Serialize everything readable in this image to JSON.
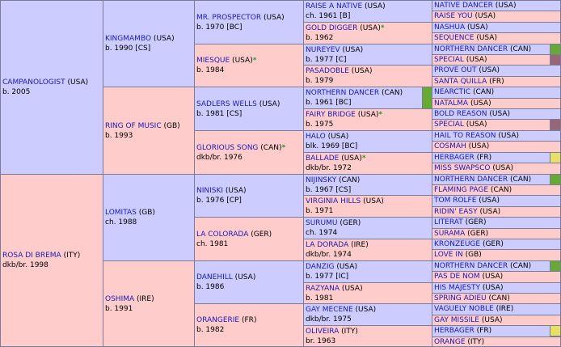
{
  "gen1": [
    {
      "name": "CAMPANOLOGIST",
      "country": "USA",
      "info": "b. 2005",
      "sex": "m"
    },
    {
      "name": "ROSA DI BREMA",
      "country": "ITY",
      "info": "dkb/br. 1998",
      "sex": "f"
    }
  ],
  "gen2": [
    {
      "name": "KINGMAMBO",
      "country": "USA",
      "info": "b. 1990 [CS]",
      "sex": "m"
    },
    {
      "name": "RING OF MUSIC",
      "country": "GB",
      "info": "b. 1993",
      "sex": "f"
    },
    {
      "name": "LOMITAS",
      "country": "GB",
      "info": "ch. 1988",
      "sex": "m"
    },
    {
      "name": "OSHIMA",
      "country": "IRE",
      "info": "b. 1991",
      "sex": "f"
    }
  ],
  "gen3": [
    {
      "name": "MR. PROSPECTOR",
      "country": "USA",
      "info": "b. 1970 [BC]",
      "sex": "m"
    },
    {
      "name": "MIESQUE",
      "country": "USA",
      "star": "*",
      "info": "b. 1984",
      "sex": "f"
    },
    {
      "name": "SADLERS WELLS",
      "country": "USA",
      "info": "b. 1981 [CS]",
      "sex": "m"
    },
    {
      "name": "GLORIOUS SONG",
      "country": "CAN",
      "star": "*",
      "info": "dkb/br. 1976",
      "sex": "f"
    },
    {
      "name": "NINISKI",
      "country": "USA",
      "info": "b. 1976 [CP]",
      "sex": "m"
    },
    {
      "name": "LA COLORADA",
      "country": "GER",
      "info": "ch. 1981",
      "sex": "f"
    },
    {
      "name": "DANEHILL",
      "country": "USA",
      "info": "b. 1986",
      "sex": "m"
    },
    {
      "name": "ORANGERIE",
      "country": "FR",
      "info": "b. 1982",
      "sex": "f"
    }
  ],
  "gen4": [
    {
      "name": "RAISE A NATIVE",
      "country": "USA",
      "info": "ch. 1961 [B]",
      "sex": "m"
    },
    {
      "name": "GOLD DIGGER",
      "country": "USA",
      "star": "*",
      "info": "b. 1962",
      "sex": "f"
    },
    {
      "name": "NUREYEV",
      "country": "USA",
      "info": "b. 1977 [C]",
      "sex": "m"
    },
    {
      "name": "PASADOBLE",
      "country": "USA",
      "info": "b. 1979",
      "sex": "f"
    },
    {
      "name": "NORTHERN DANCER",
      "country": "CAN",
      "info": "b. 1961 [BC]",
      "sex": "m",
      "swatch": "#66aa33"
    },
    {
      "name": "FAIRY BRIDGE",
      "country": "USA",
      "star": "*",
      "info": "b. 1975",
      "sex": "f"
    },
    {
      "name": "HALO",
      "country": "USA",
      "info": "blk. 1969 [BC]",
      "sex": "m"
    },
    {
      "name": "BALLADE",
      "country": "USA",
      "star": "*",
      "info": "dkb/br. 1972",
      "sex": "f"
    },
    {
      "name": "NIJINSKY",
      "country": "CAN",
      "info": "b. 1967 [CS]",
      "sex": "m"
    },
    {
      "name": "VIRGINIA HILLS",
      "country": "USA",
      "info": "b. 1971",
      "sex": "f"
    },
    {
      "name": "SURUMU",
      "country": "GER",
      "info": "ch. 1974",
      "sex": "m"
    },
    {
      "name": "LA DORADA",
      "country": "IRE",
      "info": "dkb/br. 1974",
      "sex": "f"
    },
    {
      "name": "DANZIG",
      "country": "USA",
      "info": "b. 1977 [IC]",
      "sex": "m"
    },
    {
      "name": "RAZYANA",
      "country": "USA",
      "info": "b. 1981",
      "sex": "f"
    },
    {
      "name": "GAY MECENE",
      "country": "USA",
      "info": "dkb/br. 1975",
      "sex": "m"
    },
    {
      "name": "OLIVEIRA",
      "country": "ITY",
      "info": "br. 1963",
      "sex": "f"
    }
  ],
  "gen5": [
    {
      "name": "NATIVE DANCER",
      "country": "USA",
      "sex": "m"
    },
    {
      "name": "RAISE YOU",
      "country": "USA",
      "sex": "f"
    },
    {
      "name": "NASHUA",
      "country": "USA",
      "sex": "m"
    },
    {
      "name": "SEQUENCE",
      "country": "USA",
      "sex": "f"
    },
    {
      "name": "NORTHERN DANCER",
      "country": "CAN",
      "sex": "m",
      "swatch": "#66aa33"
    },
    {
      "name": "SPECIAL",
      "country": "USA",
      "sex": "f",
      "swatch": "#996677"
    },
    {
      "name": "PROVE OUT",
      "country": "USA",
      "sex": "m"
    },
    {
      "name": "SANTA QUILLA",
      "country": "FR",
      "sex": "f"
    },
    {
      "name": "NEARCTIC",
      "country": "CAN",
      "sex": "m"
    },
    {
      "name": "NATALMA",
      "country": "USA",
      "sex": "f"
    },
    {
      "name": "BOLD REASON",
      "country": "USA",
      "sex": "m"
    },
    {
      "name": "SPECIAL",
      "country": "USA",
      "sex": "f",
      "swatch": "#996677"
    },
    {
      "name": "HAIL TO REASON",
      "country": "USA",
      "sex": "m"
    },
    {
      "name": "COSMAH",
      "country": "USA",
      "sex": "f"
    },
    {
      "name": "HERBAGER",
      "country": "FR",
      "sex": "m",
      "swatch": "#e8e060"
    },
    {
      "name": "MISS SWAPSCO",
      "country": "USA",
      "sex": "f"
    },
    {
      "name": "NORTHERN DANCER",
      "country": "CAN",
      "sex": "m",
      "swatch": "#66aa33"
    },
    {
      "name": "FLAMING PAGE",
      "country": "CAN",
      "sex": "f"
    },
    {
      "name": "TOM ROLFE",
      "country": "USA",
      "sex": "m"
    },
    {
      "name": "RIDIN' EASY",
      "country": "USA",
      "sex": "f"
    },
    {
      "name": "LITERAT",
      "country": "GER",
      "sex": "m"
    },
    {
      "name": "SURAMA",
      "country": "GER",
      "sex": "f"
    },
    {
      "name": "KRONZEUGE",
      "country": "GER",
      "sex": "m"
    },
    {
      "name": "LOVE IN",
      "country": "GB",
      "sex": "f"
    },
    {
      "name": "NORTHERN DANCER",
      "country": "CAN",
      "sex": "m",
      "swatch": "#66aa33"
    },
    {
      "name": "PAS DE NOM",
      "country": "USA",
      "sex": "f"
    },
    {
      "name": "HIS MAJESTY",
      "country": "USA",
      "sex": "m"
    },
    {
      "name": "SPRING ADIEU",
      "country": "CAN",
      "sex": "f"
    },
    {
      "name": "VAGUELY NOBLE",
      "country": "IRE",
      "sex": "m"
    },
    {
      "name": "GAY MISSILE",
      "country": "USA",
      "sex": "f"
    },
    {
      "name": "HERBAGER",
      "country": "FR",
      "sex": "m",
      "swatch": "#e8e060"
    },
    {
      "name": "ORANGE",
      "country": "ITY",
      "sex": "f"
    }
  ]
}
